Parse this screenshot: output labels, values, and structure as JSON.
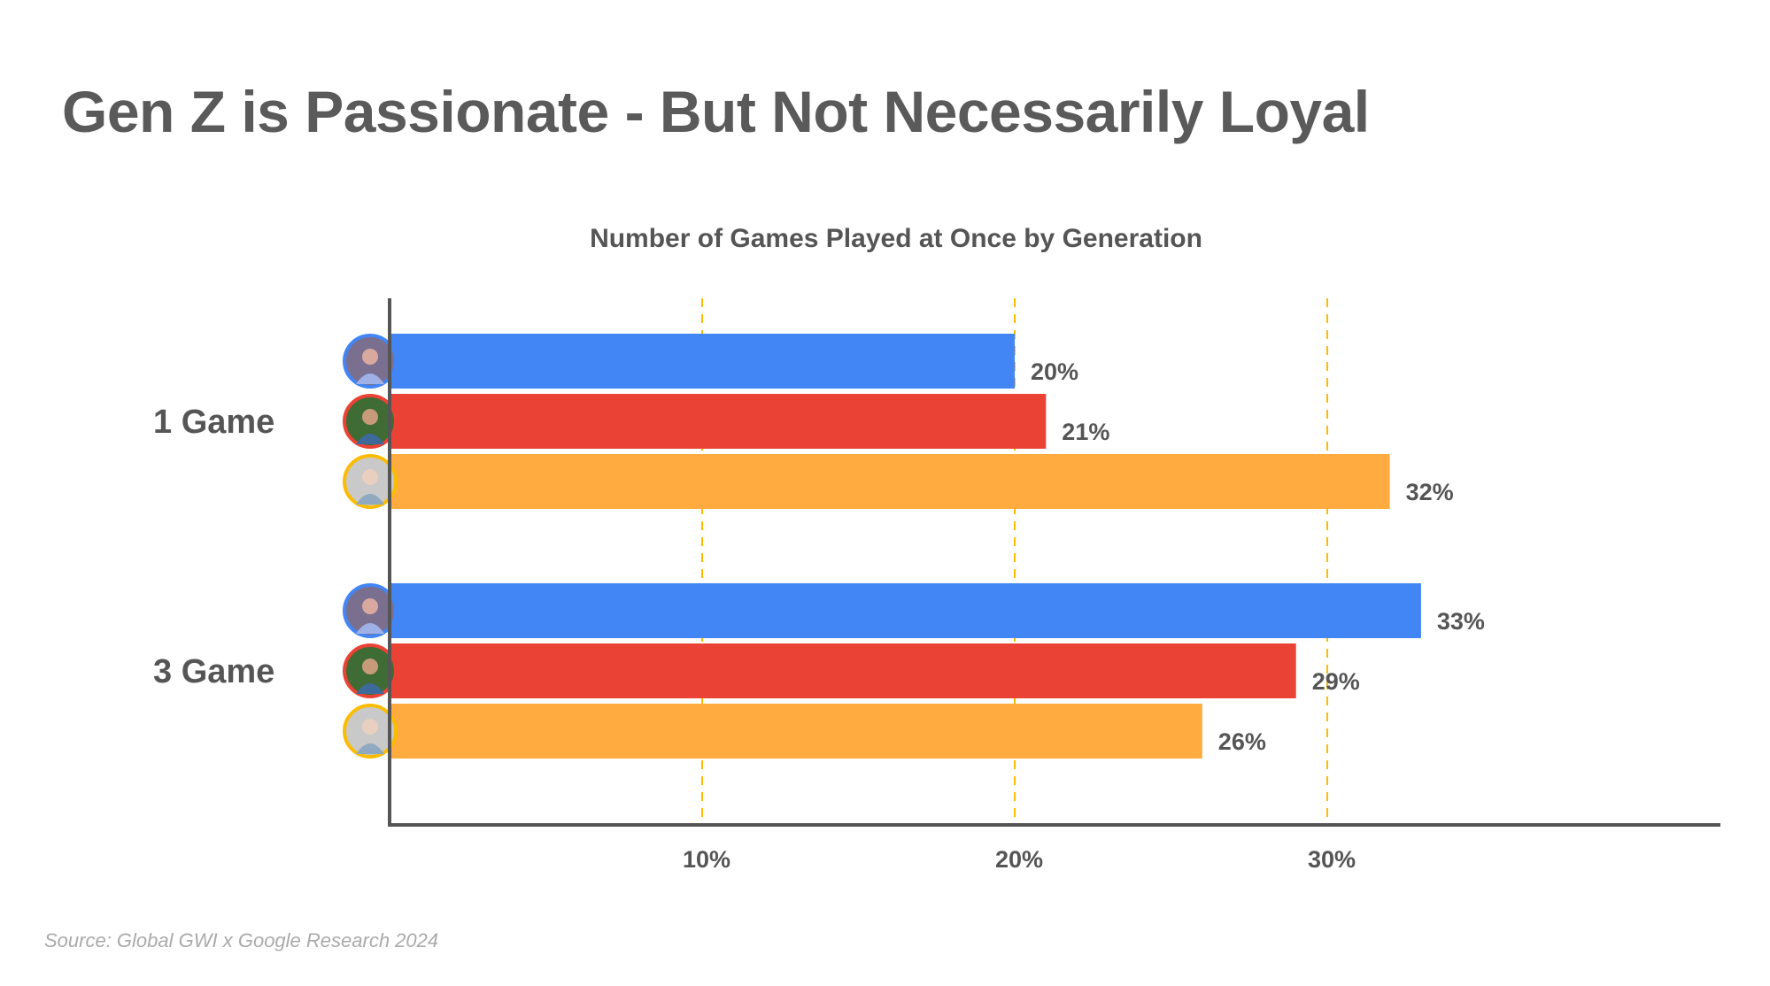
{
  "page": {
    "title": "Gen Z is Passionate - But Not Necessarily Loyal",
    "source": "Source: Global GWI x Google Research 2024"
  },
  "chart_data": {
    "type": "bar",
    "orientation": "horizontal",
    "title": "Number of Games Played at Once by Generation",
    "categories": [
      "1 Game",
      "3 Game"
    ],
    "series": [
      {
        "values": [
          20,
          33
        ],
        "color": "#4285F4",
        "avatar_ring": "#4285F4"
      },
      {
        "values": [
          21,
          29
        ],
        "color": "#EA4335",
        "avatar_ring": "#EA4335"
      },
      {
        "values": [
          32,
          26
        ],
        "color": "#FFAB40",
        "avatar_ring": "#FBBC04"
      }
    ],
    "value_labels": [
      [
        "20%",
        "33%"
      ],
      [
        "21%",
        "29%"
      ],
      [
        "32%",
        "26%"
      ]
    ],
    "xticks": [
      10,
      20,
      30
    ],
    "xtick_labels": [
      "10%",
      "20%",
      "30%"
    ],
    "xlim": [
      0,
      42.5
    ],
    "grid": {
      "vertical": true,
      "style": "dashed",
      "color": "#FBBC04"
    },
    "xlabel": "",
    "ylabel": ""
  }
}
